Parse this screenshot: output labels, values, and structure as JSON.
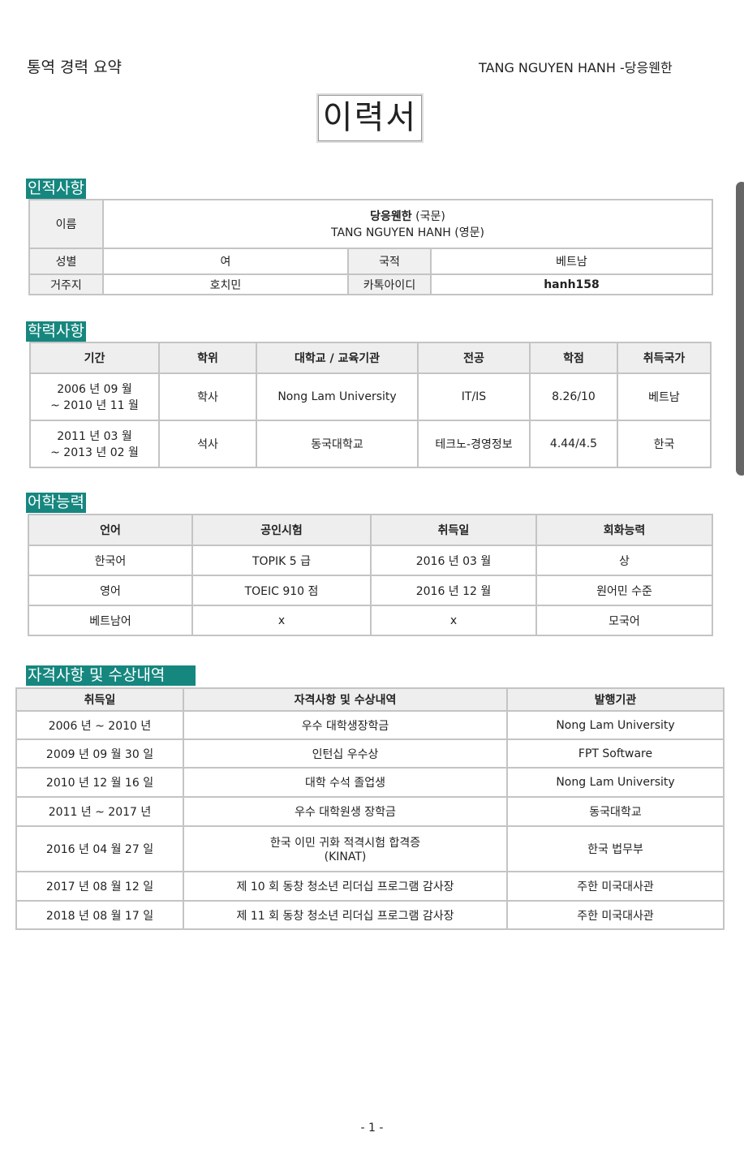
{
  "header": {
    "left": "통역 경력 요약",
    "right": "TANG NGUYEN HANH -당응웬한"
  },
  "title": "이력서",
  "personal": {
    "section": "인적사항",
    "name_label": "이름",
    "name_kr": "당응웬한",
    "name_kr_note": "(국문)",
    "name_en": "TANG NGUYEN HANH",
    "name_en_note": "(영문)",
    "gender_label": "성별",
    "gender": "여",
    "nationality_label": "국적",
    "nationality": "베트남",
    "residence_label": "거주지",
    "residence": "호치민",
    "kakao_label": "카톡아이디",
    "kakao": "hanh158"
  },
  "education": {
    "section": "학력사항",
    "headers": [
      "기간",
      "학위",
      "대학교 / 교육기관",
      "전공",
      "학점",
      "취득국가"
    ],
    "rows": [
      {
        "period1": "2006 년 09 월",
        "period2": "~ 2010 년 11 월",
        "degree": "학사",
        "school": "Nong Lam University",
        "major": "IT/IS",
        "gpa": "8.26/10",
        "country": "베트남"
      },
      {
        "period1": "2011 년 03 월",
        "period2": "~ 2013 년 02 월",
        "degree": "석사",
        "school": "동국대학교",
        "major": "테크노-경영정보",
        "gpa": "4.44/4.5",
        "country": "한국"
      }
    ]
  },
  "language": {
    "section": "어학능력",
    "headers": [
      "언어",
      "공인시험",
      "취득일",
      "회화능력"
    ],
    "rows": [
      [
        "한국어",
        "TOPIK 5 급",
        "2016 년 03 월",
        "상"
      ],
      [
        "영어",
        "TOEIC 910 점",
        "2016 년 12 월",
        "원어민 수준"
      ],
      [
        "베트남어",
        "x",
        "x",
        "모국어"
      ]
    ]
  },
  "awards": {
    "section": "자격사항 및 수상내역",
    "headers": [
      "취득일",
      "자격사항 및 수상내역",
      "발행기관"
    ],
    "rows": [
      [
        "2006 년 ~ 2010 년",
        "우수 대학생장학금",
        "Nong Lam University"
      ],
      [
        "2009 년 09 월 30 일",
        "인턴십 우수상",
        "FPT Software"
      ],
      [
        "2010 년 12 월 16 일",
        "대학 수석 졸업생",
        "Nong Lam University"
      ],
      [
        "2011 년 ~ 2017 년",
        "우수 대학원생 장학금",
        "동국대학교"
      ],
      [
        "2016 년 04 월 27 일",
        "한국 이민 귀화 적격시험 합격증\n(KINAT)",
        "한국 법무부"
      ],
      [
        "2017 년 08 월 12 일",
        "제 10 회 동창 청소년 리더십 프로그램 감사장",
        "주한 미국대사관"
      ],
      [
        "2018 년 08 월 17 일",
        "제 11 회 동창 청소년 리더십 프로그램 감사장",
        "주한 미국대사관"
      ]
    ]
  },
  "footer": "- 1 -"
}
